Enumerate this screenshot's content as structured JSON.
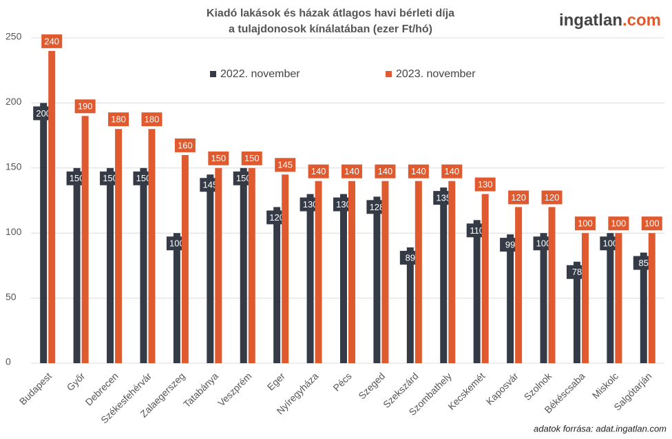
{
  "chart_data": {
    "type": "bar",
    "title": "Kiadó lakások és házak átlagos havi bérleti díja",
    "subtitle": "a tulajdonosok kínálatában (ezer Ft/hó)",
    "logo": {
      "name": "ingatlan",
      "suffix": ".com"
    },
    "source": "adatok forrása: adat.ingatlan.com",
    "categories": [
      "Budapest",
      "Győr",
      "Debrecen",
      "Székesfehérvár",
      "Zalaegerszeg",
      "Tatabánya",
      "Veszprém",
      "Eger",
      "Nyíregyháza",
      "Pécs",
      "Szeged",
      "Szekszárd",
      "Szombathely",
      "Kecskemét",
      "Kaposvár",
      "Szolnok",
      "Békéscsaba",
      "Miskolc",
      "Salgótarján"
    ],
    "series": [
      {
        "name": "2022. november",
        "color": "#343b47",
        "values": [
          200,
          150,
          150,
          150,
          100,
          145,
          150,
          120,
          130,
          130,
          128,
          89,
          135,
          110,
          99,
          100,
          78,
          100,
          85
        ]
      },
      {
        "name": "2023. november",
        "color": "#e05a30",
        "values": [
          240,
          190,
          180,
          180,
          160,
          150,
          150,
          145,
          140,
          140,
          140,
          140,
          140,
          130,
          120,
          120,
          100,
          100,
          100
        ]
      }
    ],
    "ylim": [
      0,
      250
    ],
    "yticks": [
      0,
      50,
      100,
      150,
      200,
      250
    ],
    "grid": true
  }
}
